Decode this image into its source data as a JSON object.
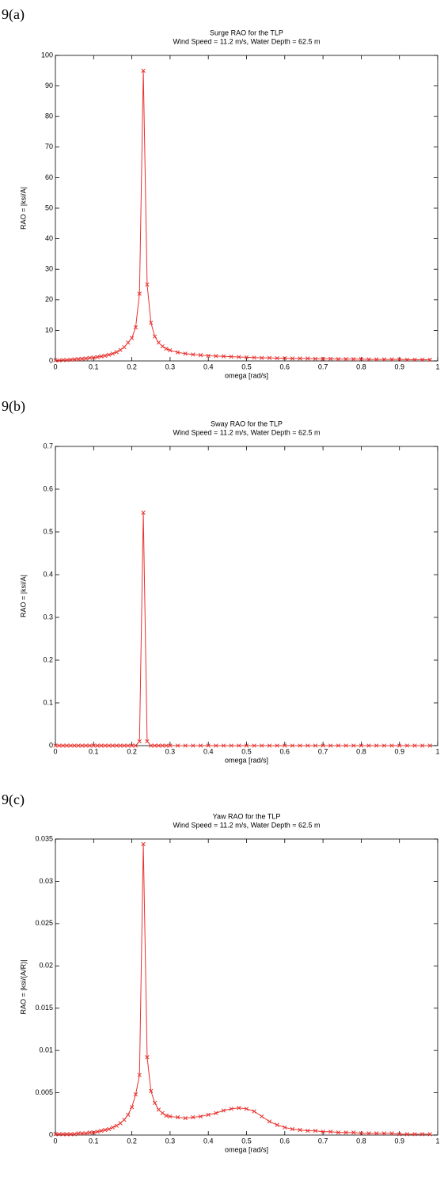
{
  "chart_data": [
    {
      "type": "line",
      "panel_label": "9(a)",
      "title": "Surge RAO for the TLP",
      "subtitle": "Wind Speed = 11.2 m/s, Water Depth = 62.5 m",
      "xlabel": "omega [rad/s]",
      "ylabel": "RAO = |ksi/A|",
      "xlim": [
        0,
        1
      ],
      "xticks": [
        0,
        0.1,
        0.2,
        0.3,
        0.4,
        0.5,
        0.6,
        0.7,
        0.8,
        0.9,
        1
      ],
      "ylim": [
        0,
        100
      ],
      "yticks": [
        0,
        10,
        20,
        30,
        40,
        50,
        60,
        70,
        80,
        90,
        100
      ],
      "grid": false,
      "x": [
        0,
        0.01,
        0.02,
        0.03,
        0.04,
        0.05,
        0.06,
        0.07,
        0.08,
        0.09,
        0.1,
        0.11,
        0.12,
        0.13,
        0.14,
        0.15,
        0.16,
        0.17,
        0.18,
        0.19,
        0.2,
        0.21,
        0.22,
        0.23,
        0.24,
        0.25,
        0.26,
        0.27,
        0.28,
        0.29,
        0.3,
        0.32,
        0.34,
        0.36,
        0.38,
        0.4,
        0.42,
        0.44,
        0.46,
        0.48,
        0.5,
        0.52,
        0.54,
        0.56,
        0.58,
        0.6,
        0.62,
        0.64,
        0.66,
        0.68,
        0.7,
        0.72,
        0.74,
        0.76,
        0.78,
        0.8,
        0.82,
        0.84,
        0.86,
        0.88,
        0.9,
        0.92,
        0.94,
        0.96,
        0.98
      ],
      "series": [
        {
          "color": "#e8332f",
          "values": [
            0.2,
            0.2,
            0.3,
            0.3,
            0.4,
            0.5,
            0.6,
            0.7,
            0.8,
            1.0,
            1.1,
            1.3,
            1.5,
            1.7,
            2.0,
            2.4,
            2.9,
            3.6,
            4.5,
            6.0,
            7.5,
            11,
            22,
            95,
            25,
            12.5,
            8,
            6,
            4.8,
            4,
            3.5,
            2.8,
            2.4,
            2.1,
            1.9,
            1.7,
            1.6,
            1.5,
            1.4,
            1.3,
            1.2,
            1.1,
            1.0,
            1.0,
            0.9,
            0.9,
            0.8,
            0.8,
            0.8,
            0.7,
            0.7,
            0.7,
            0.6,
            0.6,
            0.6,
            0.6,
            0.5,
            0.5,
            0.5,
            0.5,
            0.5,
            0.4,
            0.4,
            0.4,
            0.4
          ]
        }
      ]
    },
    {
      "type": "line",
      "panel_label": "9(b)",
      "title": "Sway RAO for the TLP",
      "subtitle": "Wind Speed = 11.2 m/s, Water Depth = 62.5 m",
      "xlabel": "omega [rad/s]",
      "ylabel": "RAO = |ksi/A|",
      "xlim": [
        0,
        1
      ],
      "xticks": [
        0,
        0.1,
        0.2,
        0.3,
        0.4,
        0.5,
        0.6,
        0.7,
        0.8,
        0.9,
        1
      ],
      "ylim": [
        0,
        0.7
      ],
      "yticks": [
        0,
        0.1,
        0.2,
        0.3,
        0.4,
        0.5,
        0.6,
        0.7
      ],
      "grid": false,
      "x": [
        0,
        0.01,
        0.02,
        0.03,
        0.04,
        0.05,
        0.06,
        0.07,
        0.08,
        0.09,
        0.1,
        0.11,
        0.12,
        0.13,
        0.14,
        0.15,
        0.16,
        0.17,
        0.18,
        0.19,
        0.2,
        0.21,
        0.22,
        0.23,
        0.24,
        0.25,
        0.26,
        0.27,
        0.28,
        0.29,
        0.3,
        0.32,
        0.34,
        0.36,
        0.38,
        0.4,
        0.42,
        0.44,
        0.46,
        0.48,
        0.5,
        0.52,
        0.54,
        0.56,
        0.58,
        0.6,
        0.62,
        0.64,
        0.66,
        0.68,
        0.7,
        0.72,
        0.74,
        0.76,
        0.78,
        0.8,
        0.82,
        0.84,
        0.86,
        0.88,
        0.9,
        0.92,
        0.94,
        0.96,
        0.98
      ],
      "series": [
        {
          "color": "#e8332f",
          "values": [
            0,
            0,
            0,
            0,
            0,
            0,
            0,
            0,
            0,
            0,
            0,
            0,
            0,
            0,
            0,
            0,
            0,
            0,
            0,
            0,
            0,
            0,
            0.01,
            0.545,
            0.01,
            0,
            0,
            0,
            0,
            0,
            0,
            0,
            0,
            0,
            0,
            0,
            0,
            0,
            0,
            0,
            0,
            0,
            0,
            0,
            0,
            0,
            0,
            0,
            0,
            0,
            0,
            0,
            0,
            0,
            0,
            0,
            0,
            0,
            0,
            0,
            0,
            0,
            0,
            0,
            0
          ]
        }
      ]
    },
    {
      "type": "line",
      "panel_label": "9(c)",
      "title": "Yaw RAO for the TLP",
      "subtitle": "Wind Speed = 11.2 m/s, Water Depth = 62.5 m",
      "xlabel": "omega [rad/s]",
      "ylabel": "RAO = |ksi/(A/R)|",
      "xlim": [
        0,
        1
      ],
      "xticks": [
        0,
        0.1,
        0.2,
        0.3,
        0.4,
        0.5,
        0.6,
        0.7,
        0.8,
        0.9,
        1
      ],
      "ylim": [
        0,
        0.035
      ],
      "yticks": [
        0,
        0.005,
        0.01,
        0.015,
        0.02,
        0.025,
        0.03,
        0.035
      ],
      "grid": false,
      "x": [
        0,
        0.01,
        0.02,
        0.03,
        0.04,
        0.05,
        0.06,
        0.07,
        0.08,
        0.09,
        0.1,
        0.11,
        0.12,
        0.13,
        0.14,
        0.15,
        0.16,
        0.17,
        0.18,
        0.19,
        0.2,
        0.21,
        0.22,
        0.23,
        0.24,
        0.25,
        0.26,
        0.27,
        0.28,
        0.29,
        0.3,
        0.32,
        0.34,
        0.36,
        0.38,
        0.4,
        0.42,
        0.44,
        0.46,
        0.48,
        0.5,
        0.52,
        0.54,
        0.56,
        0.58,
        0.6,
        0.62,
        0.64,
        0.66,
        0.68,
        0.7,
        0.72,
        0.74,
        0.76,
        0.78,
        0.8,
        0.82,
        0.84,
        0.86,
        0.88,
        0.9,
        0.92,
        0.94,
        0.96,
        0.98
      ],
      "series": [
        {
          "color": "#e8332f",
          "values": [
            0.0001,
            0.0001,
            0.0001,
            0.0001,
            0.0001,
            0.0001,
            0.0002,
            0.0002,
            0.0002,
            0.0003,
            0.0003,
            0.0004,
            0.0005,
            0.0006,
            0.0007,
            0.0009,
            0.0011,
            0.0014,
            0.0018,
            0.0024,
            0.0033,
            0.0048,
            0.0071,
            0.0344,
            0.0092,
            0.0052,
            0.0038,
            0.003,
            0.0026,
            0.0023,
            0.0022,
            0.0021,
            0.002,
            0.0021,
            0.0022,
            0.0024,
            0.0026,
            0.0029,
            0.0031,
            0.0032,
            0.0031,
            0.0028,
            0.0022,
            0.0016,
            0.0012,
            0.0009,
            0.0007,
            0.0006,
            0.0005,
            0.0005,
            0.0004,
            0.0004,
            0.0003,
            0.0003,
            0.0003,
            0.0002,
            0.0002,
            0.0002,
            0.0002,
            0.0002,
            0.0001,
            0.0001,
            0.0001,
            0.0001,
            0.0001
          ]
        }
      ]
    }
  ]
}
